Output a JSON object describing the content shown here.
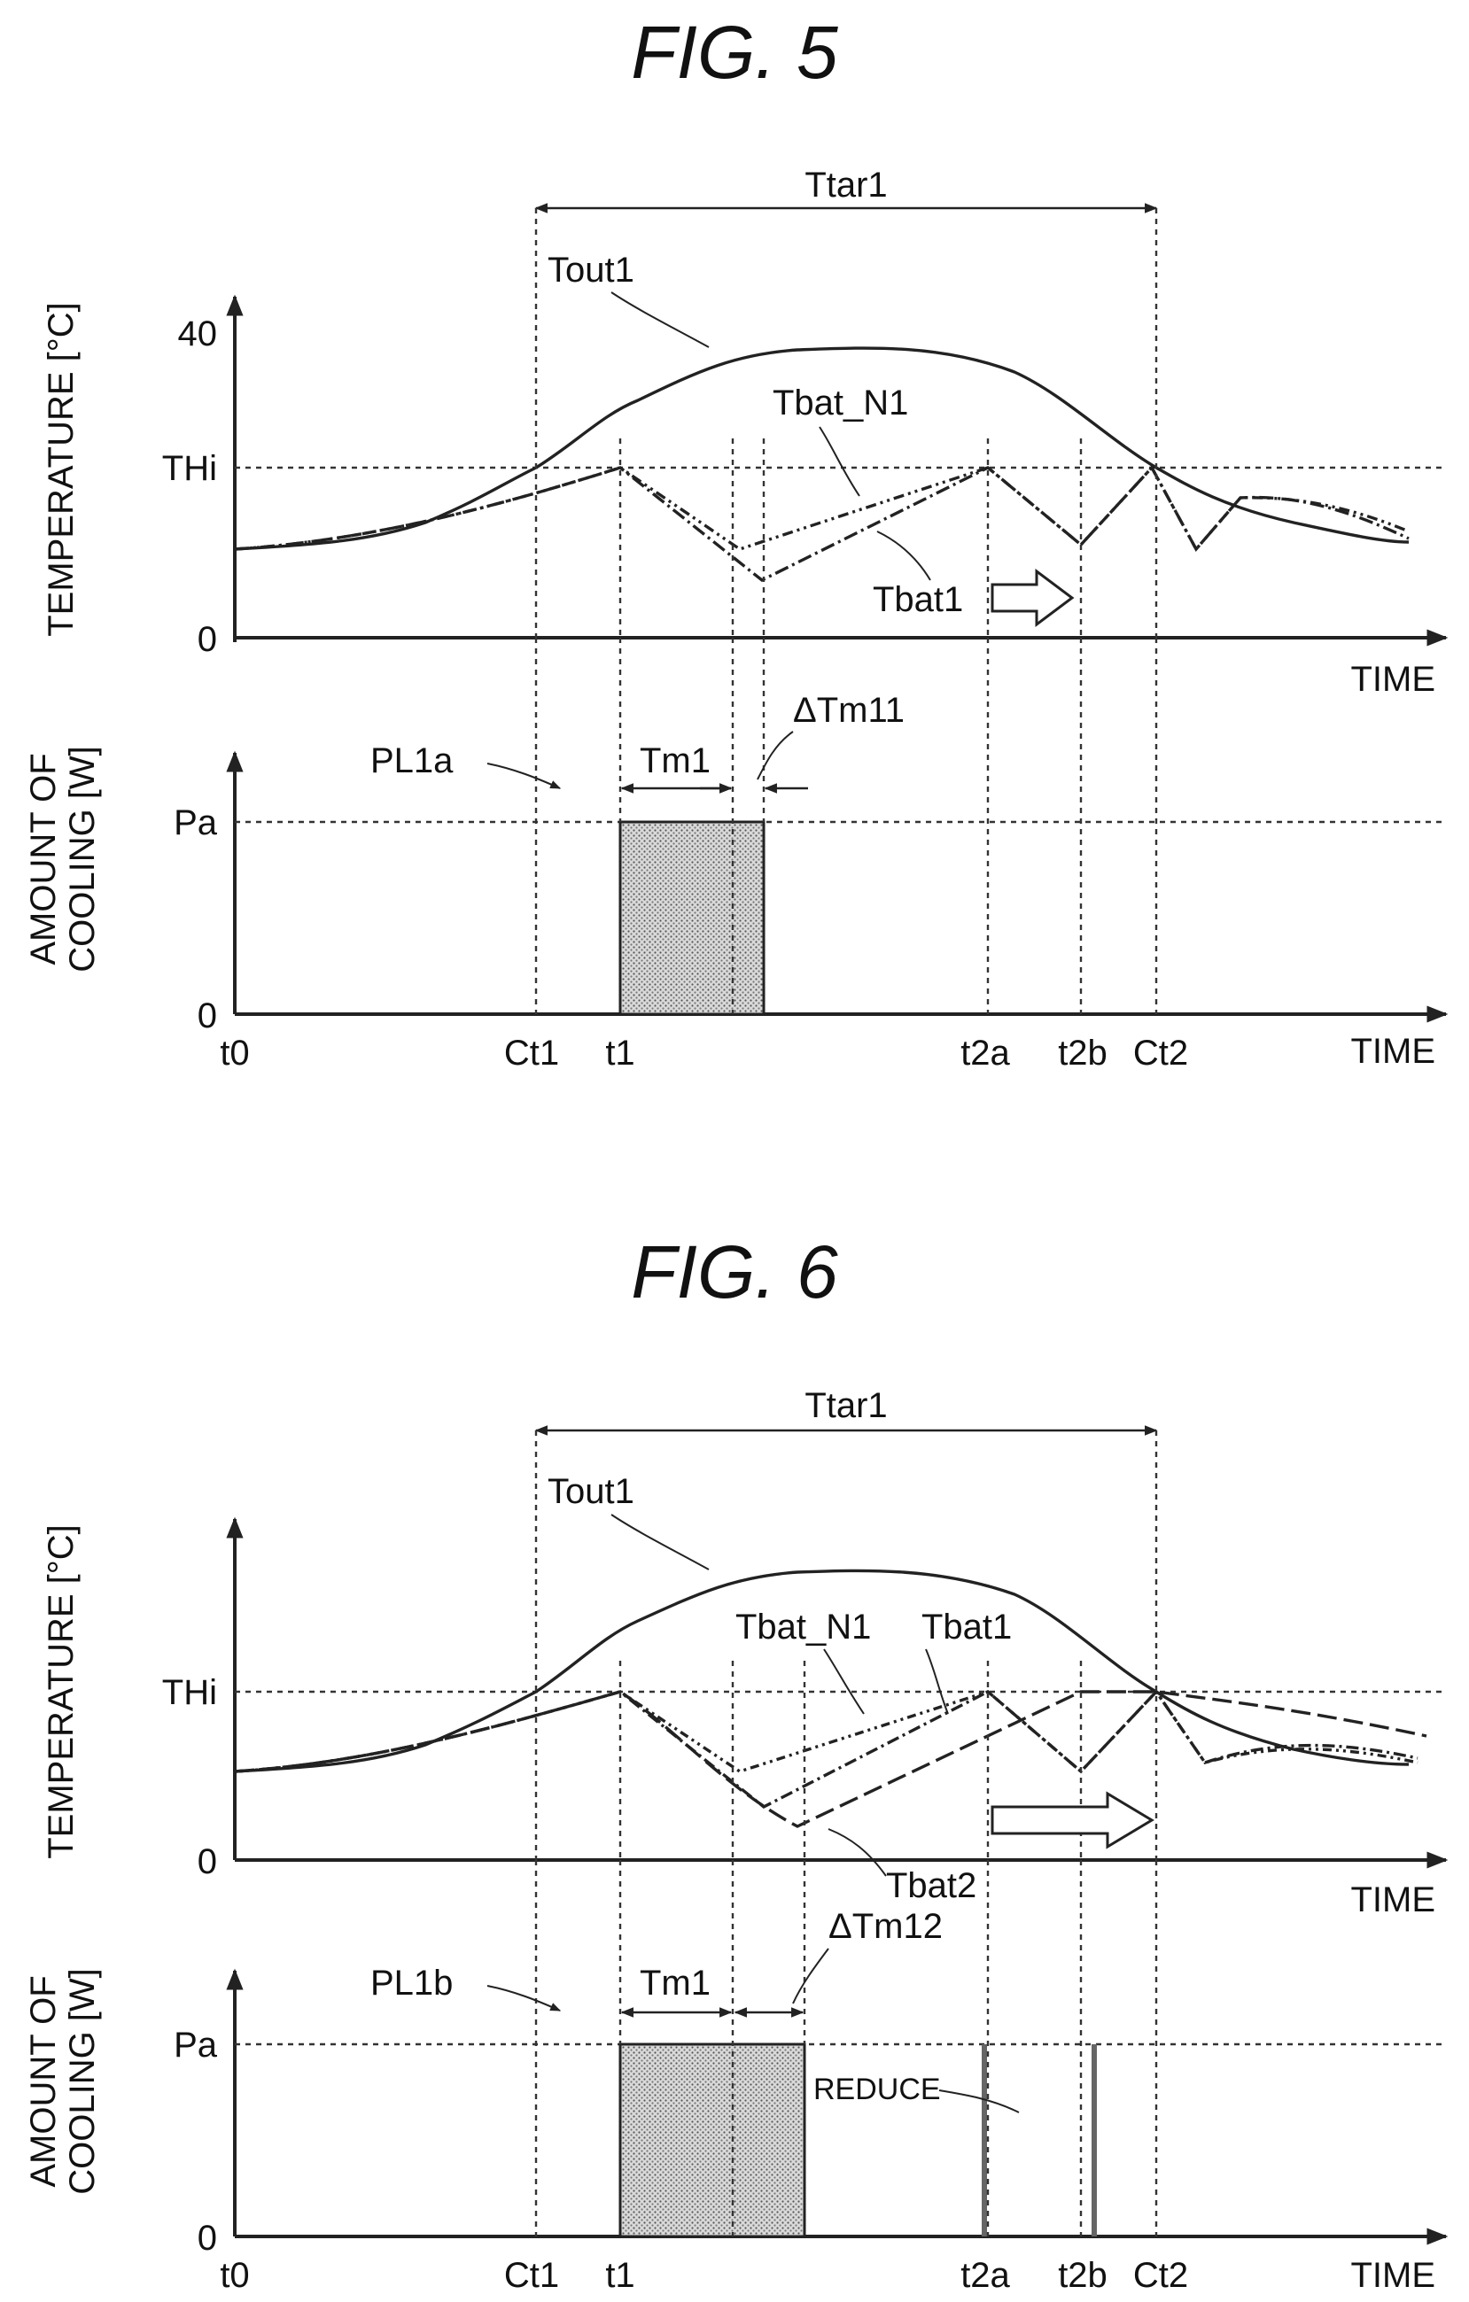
{
  "figures": [
    {
      "id": "fig5",
      "title": "FIG. 5",
      "top_chart": {
        "ylabel": "TEMPERATURE [°C]",
        "xlabel": "TIME",
        "y_ticks": [
          "40",
          "THi",
          "0"
        ],
        "labels": {
          "ttar": "Ttar1",
          "tout": "Tout1",
          "tbat_n": "Tbat_N1",
          "tbat": "Tbat1"
        }
      },
      "bottom_chart": {
        "ylabel_line1": "AMOUNT OF",
        "ylabel_line2": "COOLING [W]",
        "xlabel": "TIME",
        "y_ticks": [
          "Pa",
          "0"
        ],
        "labels": {
          "pl": "PL1a",
          "tm": "Tm1",
          "dtm": "ΔTm11"
        },
        "x_ticks": [
          "t0",
          "Ct1",
          "t1",
          "t2a",
          "t2b",
          "Ct2"
        ]
      }
    },
    {
      "id": "fig6",
      "title": "FIG. 6",
      "top_chart": {
        "ylabel": "TEMPERATURE [°C]",
        "xlabel": "TIME",
        "y_ticks": [
          "THi",
          "0"
        ],
        "labels": {
          "ttar": "Ttar1",
          "tout": "Tout1",
          "tbat_n": "Tbat_N1",
          "tbat": "Tbat1",
          "tbat2": "Tbat2"
        }
      },
      "bottom_chart": {
        "ylabel_line1": "AMOUNT OF",
        "ylabel_line2": "COOLING [W]",
        "xlabel": "TIME",
        "y_ticks": [
          "Pa",
          "0"
        ],
        "labels": {
          "pl": "PL1b",
          "tm": "Tm1",
          "dtm": "ΔTm12",
          "reduce": "REDUCE"
        },
        "x_ticks": [
          "t0",
          "Ct1",
          "t1",
          "t2a",
          "t2b",
          "Ct2"
        ]
      }
    }
  ]
}
